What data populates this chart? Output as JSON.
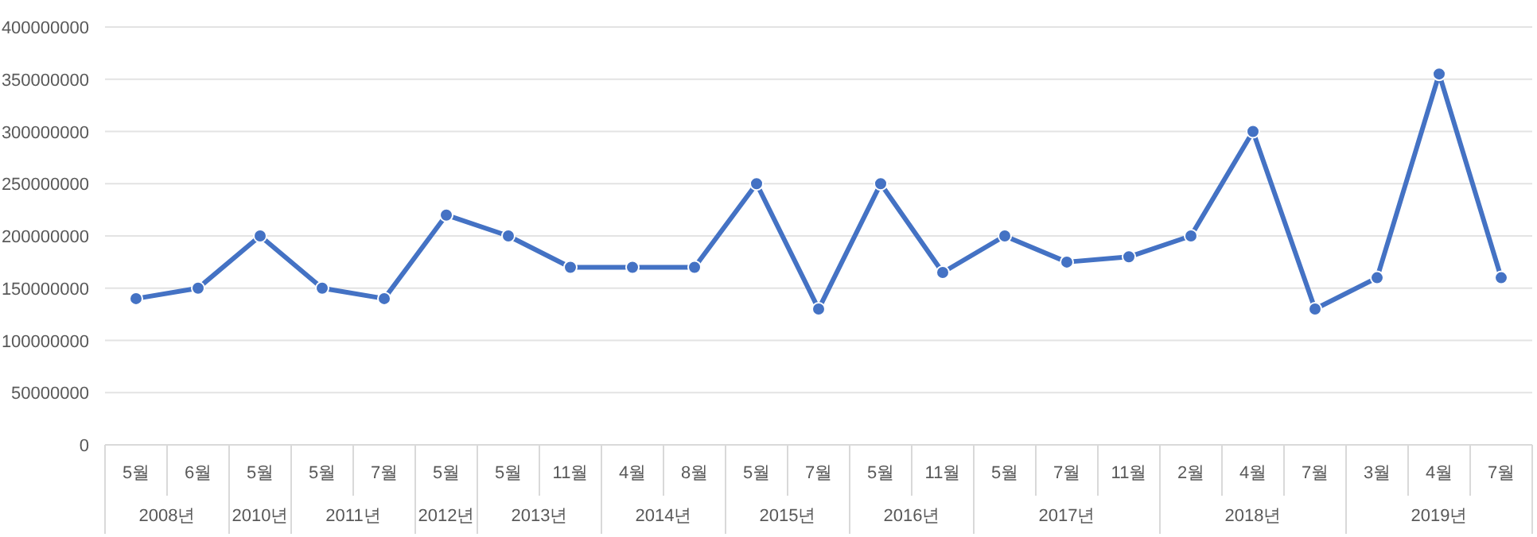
{
  "chart_data": {
    "type": "line",
    "categories": [
      "5월",
      "6월",
      "5월",
      "5월",
      "7월",
      "5월",
      "5월",
      "11월",
      "4월",
      "8월",
      "5월",
      "7월",
      "5월",
      "11월",
      "5월",
      "7월",
      "11월",
      "2월",
      "4월",
      "7월",
      "3월",
      "4월",
      "7월"
    ],
    "annotations": [
      "2008년",
      "2010년",
      "2011년",
      "2012년",
      "2013년",
      "2014년",
      "2015년",
      "2016년",
      "2017년",
      "2018년",
      "2019년"
    ],
    "series": [
      {
        "color": "#4472c4",
        "values": [
          140000000,
          150000000,
          200000000,
          150000000,
          140000000,
          220000000,
          200000000,
          170000000,
          170000000,
          170000000,
          250000000,
          130000000,
          250000000,
          165000000,
          200000000,
          175000000,
          180000000,
          200000000,
          300000000,
          130000000,
          160000000,
          355000000,
          160000000
        ]
      }
    ],
    "ylim": [
      0,
      400000000
    ],
    "yticks": [
      0,
      50000000,
      100000000,
      150000000,
      200000000,
      250000000,
      300000000,
      350000000,
      400000000
    ],
    "grid": "y",
    "marker": "circle",
    "line_style": "solid"
  }
}
